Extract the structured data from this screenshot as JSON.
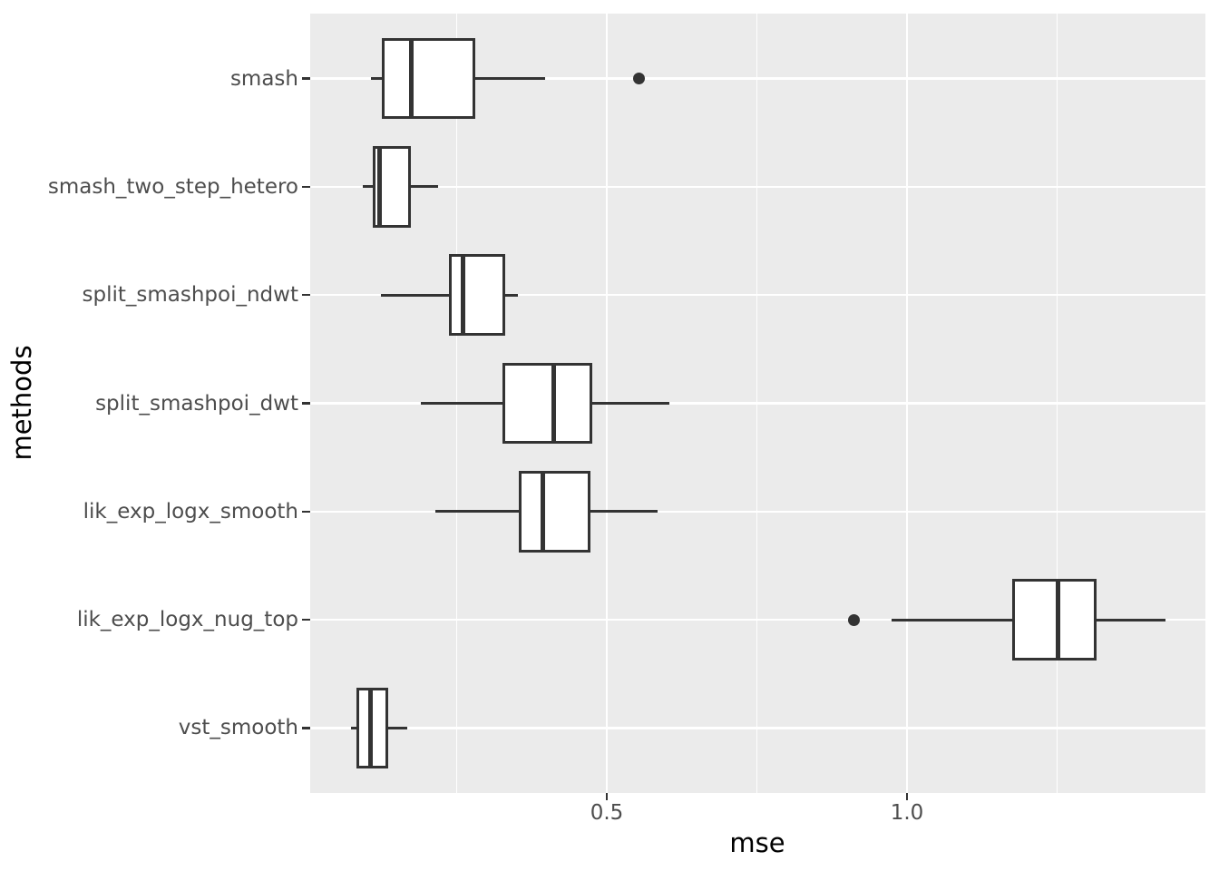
{
  "chart_data": {
    "type": "boxplot",
    "orientation": "horizontal",
    "title": "",
    "xlabel": "mse",
    "ylabel": "methods",
    "categories": [
      "smash",
      "smash_two_step_hetero",
      "split_smashpoi_ndwt",
      "split_smashpoi_dwt",
      "lik_exp_logx_smooth",
      "lik_exp_logx_nug_top",
      "vst_smooth"
    ],
    "series": [
      {
        "name": "smash",
        "whisker_low": 0.107,
        "q1": 0.128,
        "median": 0.175,
        "q3": 0.278,
        "whisker_high": 0.397,
        "outliers": [
          0.553
        ]
      },
      {
        "name": "smash_two_step_hetero",
        "whisker_low": 0.094,
        "q1": 0.112,
        "median": 0.121,
        "q3": 0.171,
        "whisker_high": 0.219,
        "outliers": []
      },
      {
        "name": "split_smashpoi_ndwt",
        "whisker_low": 0.124,
        "q1": 0.24,
        "median": 0.261,
        "q3": 0.329,
        "whisker_high": 0.352,
        "outliers": []
      },
      {
        "name": "split_smashpoi_dwt",
        "whisker_low": 0.19,
        "q1": 0.329,
        "median": 0.412,
        "q3": 0.473,
        "whisker_high": 0.604,
        "outliers": []
      },
      {
        "name": "lik_exp_logx_smooth",
        "whisker_low": 0.215,
        "q1": 0.355,
        "median": 0.393,
        "q3": 0.471,
        "whisker_high": 0.585,
        "outliers": []
      },
      {
        "name": "lik_exp_logx_nug_top",
        "whisker_low": 0.974,
        "q1": 1.178,
        "median": 1.252,
        "q3": 1.314,
        "whisker_high": 1.43,
        "outliers": [
          0.912
        ]
      },
      {
        "name": "vst_smooth",
        "whisker_low": 0.074,
        "q1": 0.086,
        "median": 0.107,
        "q3": 0.133,
        "whisker_high": 0.168,
        "outliers": []
      }
    ],
    "xlim": [
      0.006,
      1.497
    ],
    "x_major_ticks": [
      0.5,
      1.0
    ],
    "x_tick_labels": [
      "0.5",
      "1.0"
    ],
    "x_minor_gridlines": [
      0.25,
      0.75,
      1.25
    ],
    "category_band_units": 7.2,
    "category_padding_units": 0.6,
    "box_width_fraction": 0.75,
    "grid": "white major+minor vertical, white major horizontal, no legend",
    "legend": "none",
    "colors": {
      "panel_background": "#EBEBEB",
      "gridline": "#FFFFFF",
      "box_stroke": "#333333",
      "box_fill": "#FFFFFF",
      "outlier": "#333333",
      "tick_mark": "#333333",
      "tick_label": "#4D4D4D",
      "axis_title": "#000000"
    }
  }
}
